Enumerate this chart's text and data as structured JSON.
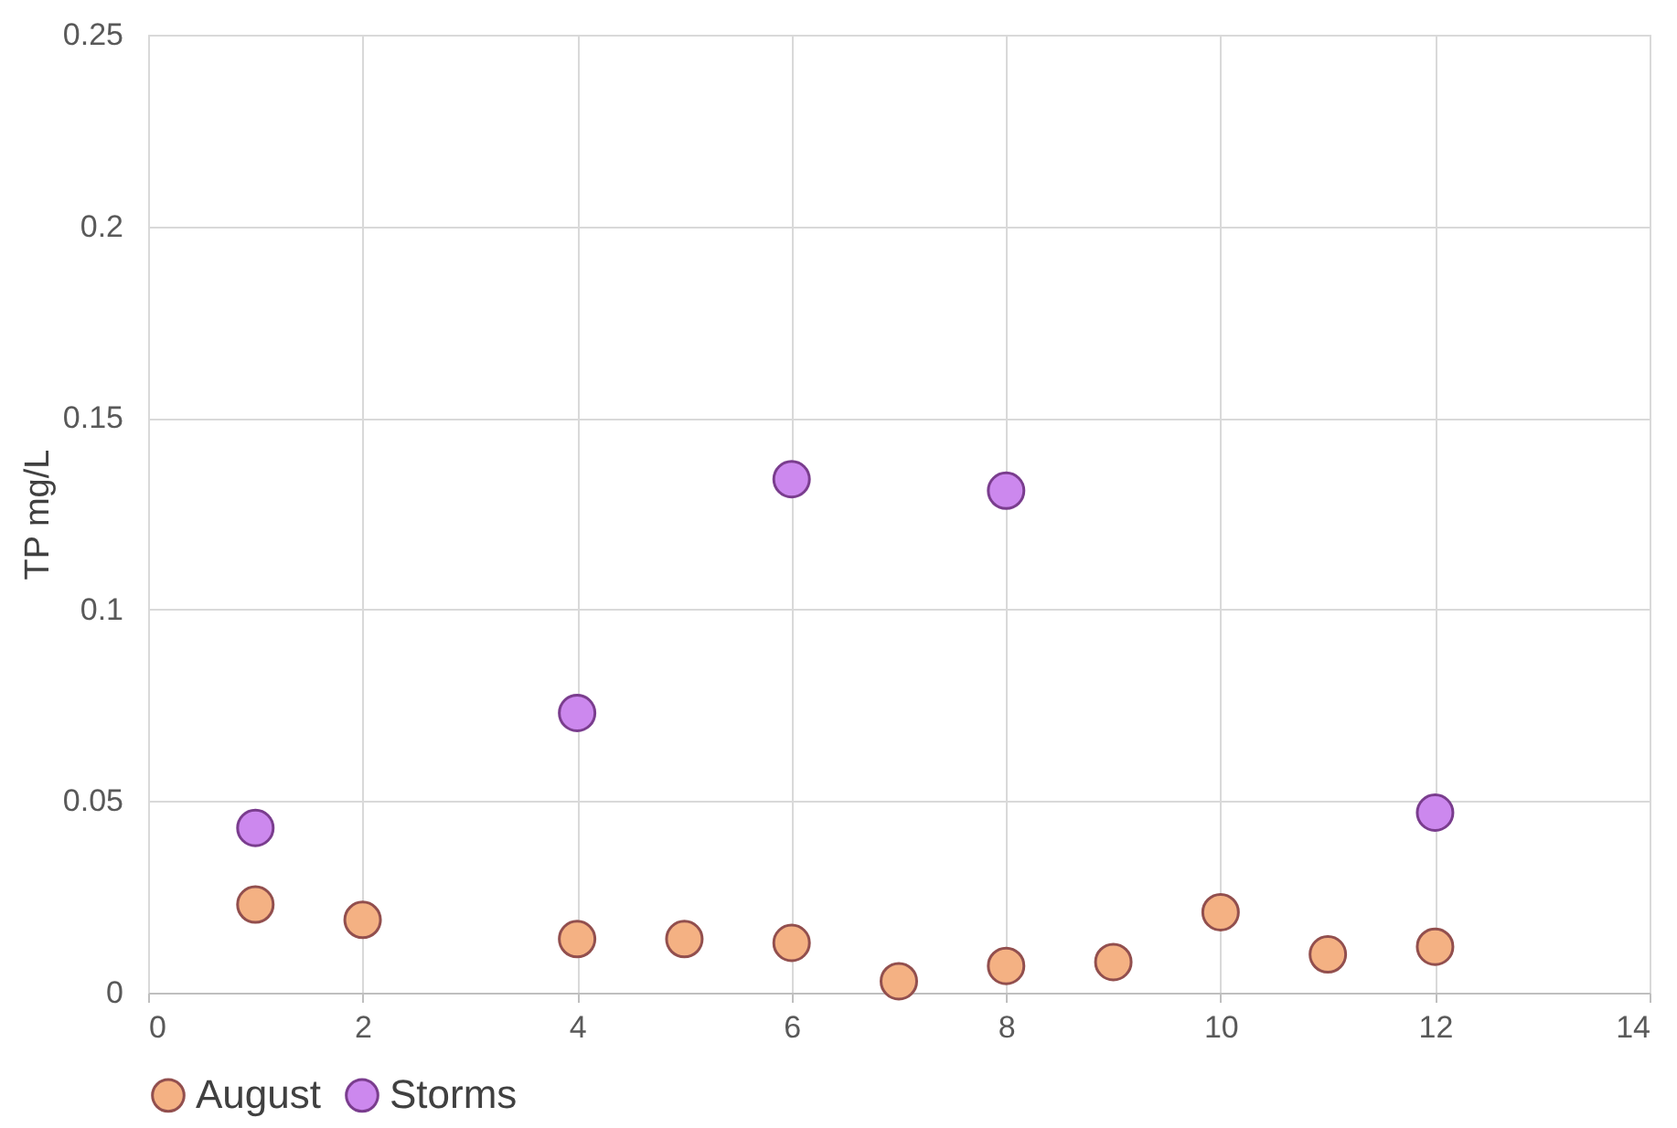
{
  "chart_data": {
    "type": "scatter",
    "ylabel": "TP mg/L",
    "xlim": [
      0,
      14
    ],
    "xticks": [
      0,
      2,
      4,
      6,
      8,
      10,
      12,
      14
    ],
    "ylim": [
      0,
      0.25
    ],
    "yticks": [
      0,
      0.05,
      0.1,
      0.15,
      0.2,
      0.25
    ],
    "grid": true,
    "legend": "bottom",
    "marker": "circle",
    "series": [
      {
        "name": "August",
        "color": "#f4b183",
        "x": [
          1,
          2,
          4,
          5,
          6,
          7,
          8,
          9,
          10,
          11,
          12
        ],
        "values": [
          0.023,
          0.019,
          0.014,
          0.014,
          0.013,
          0.003,
          0.007,
          0.008,
          0.021,
          0.01,
          0.012
        ]
      },
      {
        "name": "Storms",
        "color": "#cc88ee",
        "x": [
          1,
          4,
          6,
          8,
          12
        ],
        "values": [
          0.043,
          0.073,
          0.134,
          0.131,
          0.047
        ]
      }
    ]
  }
}
